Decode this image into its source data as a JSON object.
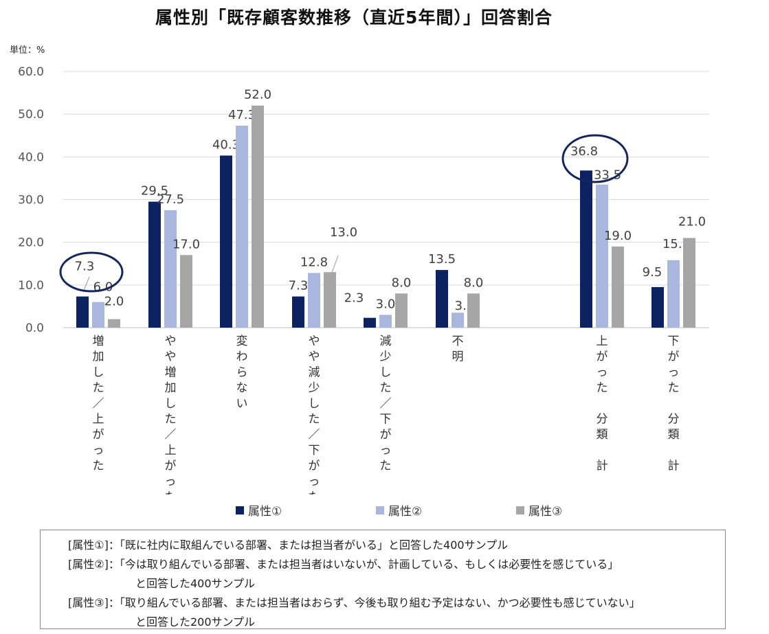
{
  "title": "属性別「既存顧客数推移（直近5年間）」回答割合",
  "unit_label": "単位：%",
  "colors": {
    "series1": "#0d2260",
    "series2": "#a9b6dd",
    "series3": "#a6a6a6",
    "circle": "#13275e",
    "grid": "#d9d9d9"
  },
  "chart_data": {
    "type": "bar",
    "title": "属性別「既存顧客数推移（直近5年間）」回答割合",
    "ylabel": "単位：%",
    "ylim": [
      0,
      60
    ],
    "yticks": [
      "0.0",
      "10.0",
      "20.0",
      "30.0",
      "40.0",
      "50.0",
      "60.0"
    ],
    "categories": [
      "増加した／上がった",
      "やや増加した／上がった",
      "変わらない",
      "やや減少した／下がった",
      "減少した／下がった",
      "不明",
      "上がった　分類　計",
      "下がった　分類　計"
    ],
    "series": [
      {
        "name": "属性①",
        "values": [
          7.3,
          29.5,
          40.3,
          7.3,
          2.3,
          13.5,
          36.8,
          9.5
        ],
        "labels": [
          "7.3",
          "29.5",
          "40.3",
          "7.3",
          "2.3",
          "13.5",
          "36.8",
          "9.5"
        ]
      },
      {
        "name": "属性②",
        "values": [
          6.0,
          27.5,
          47.3,
          12.8,
          3.0,
          3.5,
          33.5,
          15.8
        ],
        "labels": [
          "6.0",
          "27.5",
          "47.3",
          "12.8",
          "3.0",
          "3.5",
          "33.5",
          "15.8"
        ]
      },
      {
        "name": "属性③",
        "values": [
          2.0,
          17.0,
          52.0,
          13.0,
          8.0,
          8.0,
          19.0,
          21.0
        ],
        "labels": [
          "2.0",
          "17.0",
          "52.0",
          "13.0",
          "8.0",
          "8.0",
          "19.0",
          "21.0"
        ]
      }
    ],
    "annotations": [
      "circle around 増加した／上がった 属性① label",
      "circle around 上がった 分類 計 属性① label"
    ],
    "legend_position": "bottom"
  },
  "legend": [
    {
      "label": "属性①"
    },
    {
      "label": "属性②"
    },
    {
      "label": "属性③"
    }
  ],
  "notes": {
    "line1": "[属性①]：「既に社内に取組んでいる部署、または担当者がいる」と回答した400サンプル",
    "line2": "[属性②]：「今は取り組んでいる部署、または担当者はいないが、計画している、もしくは必要性を感じている」",
    "line3": "と回答した400サンプル",
    "line4": "[属性③]：「取り組んでいる部署、または担当者はおらず、今後も取り組む予定はない、かつ必要性も感じていない」",
    "line5": "と回答した200サンプル"
  }
}
